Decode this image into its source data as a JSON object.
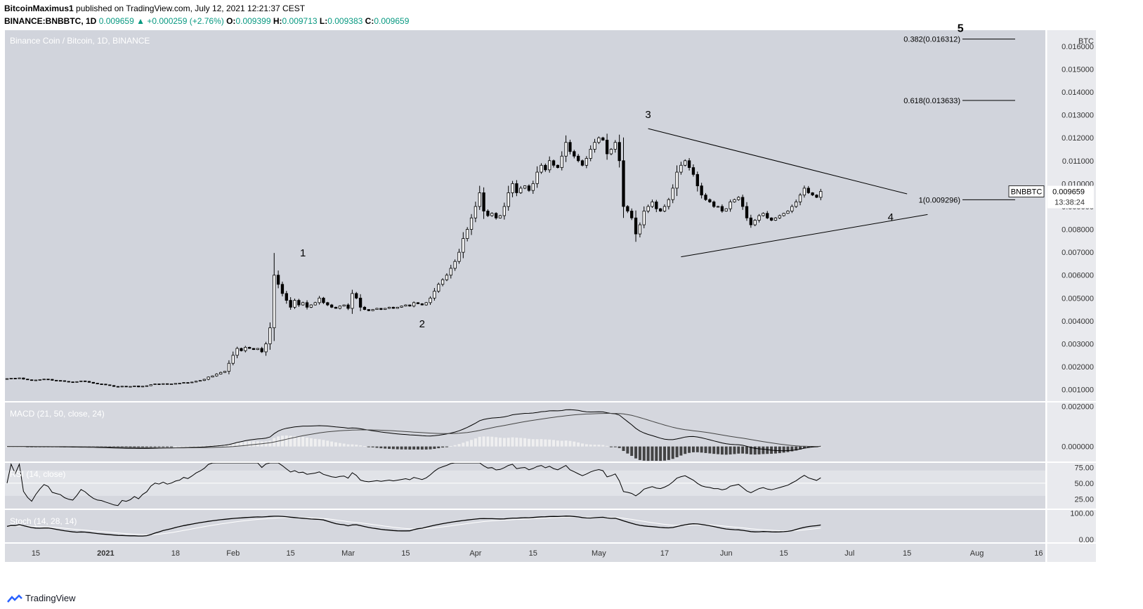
{
  "header": {
    "author": "BitcoinMaximus1",
    "published": "published on TradingView.com, July 12, 2021 12:21:37 CEST",
    "symbol": "BINANCE:BNBBTC, 1D",
    "last": "0.009659",
    "change": "+0.000259 (+2.76%)",
    "open_label": "O:",
    "open": "0.009399",
    "high_label": "H:",
    "high": "0.009713",
    "low_label": "L:",
    "low": "0.009383",
    "close_label": "C:",
    "close": "0.009659"
  },
  "brand": {
    "name": "TradingView"
  },
  "colors": {
    "pane_bg": "#d1d4dc",
    "indicator_bg": "#d5d7de",
    "band": "#e1e3e8",
    "candle_up": "#ffffff",
    "candle_down": "#000000",
    "line": "#000000"
  },
  "chart_data": {
    "type": "candlestick",
    "title": "Binance Coin / Bitcoin, 1D, BINANCE",
    "price_unit": "BTC",
    "ylim": [
      0.0005,
      0.0167
    ],
    "price_ticks": [
      "0.016000",
      "0.015000",
      "0.014000",
      "0.013000",
      "0.012000",
      "0.011000",
      "0.010000",
      "0.009000",
      "0.008000",
      "0.007000",
      "0.006000",
      "0.005000",
      "0.004000",
      "0.003000",
      "0.002000",
      "0.001000"
    ],
    "x_ticks": [
      {
        "date": "2020-12-15",
        "label": "15"
      },
      {
        "date": "2021-01-01",
        "label": "2021"
      },
      {
        "date": "2021-01-18",
        "label": "18"
      },
      {
        "date": "2021-02-01",
        "label": "Feb"
      },
      {
        "date": "2021-02-15",
        "label": "15"
      },
      {
        "date": "2021-03-01",
        "label": "Mar"
      },
      {
        "date": "2021-03-15",
        "label": "15"
      },
      {
        "date": "2021-04-01",
        "label": "Apr"
      },
      {
        "date": "2021-04-15",
        "label": "15"
      },
      {
        "date": "2021-05-01",
        "label": "May"
      },
      {
        "date": "2021-05-17",
        "label": "17"
      },
      {
        "date": "2021-06-01",
        "label": "Jun"
      },
      {
        "date": "2021-06-15",
        "label": "15"
      },
      {
        "date": "2021-07-01",
        "label": "Jul"
      },
      {
        "date": "2021-07-15",
        "label": "15"
      },
      {
        "date": "2021-08-01",
        "label": "Aug"
      },
      {
        "date": "2021-08-16",
        "label": "16"
      }
    ],
    "close_series": {
      "start_date": "2020-12-08",
      "values": [
        0.00148,
        0.0015,
        0.00149,
        0.00151,
        0.00146,
        0.00143,
        0.0014,
        0.00142,
        0.00144,
        0.00146,
        0.00145,
        0.00141,
        0.0014,
        0.00139,
        0.00136,
        0.00134,
        0.00133,
        0.00135,
        0.00138,
        0.00136,
        0.00132,
        0.00128,
        0.00125,
        0.00124,
        0.00121,
        0.00118,
        0.00114,
        0.00112,
        0.00115,
        0.00113,
        0.00114,
        0.00116,
        0.00112,
        0.00115,
        0.00117,
        0.00122,
        0.00125,
        0.00124,
        0.00126,
        0.00124,
        0.00125,
        0.00127,
        0.00128,
        0.00131,
        0.0013,
        0.00133,
        0.00137,
        0.0014,
        0.00145,
        0.00155,
        0.0016,
        0.00168,
        0.00175,
        0.0018,
        0.00215,
        0.0025,
        0.0028,
        0.0027,
        0.00285,
        0.0028,
        0.00275,
        0.0028,
        0.00265,
        0.003,
        0.0037,
        0.006,
        0.0056,
        0.0052,
        0.0049,
        0.0046,
        0.0049,
        0.0047,
        0.0048,
        0.0046,
        0.0047,
        0.0048,
        0.005,
        0.0048,
        0.0047,
        0.0046,
        0.00455,
        0.00465,
        0.0047,
        0.00455,
        0.0052,
        0.005,
        0.0046,
        0.0045,
        0.00445,
        0.0045,
        0.00455,
        0.0045,
        0.00455,
        0.0046,
        0.00455,
        0.0046,
        0.00465,
        0.0047,
        0.00465,
        0.0048,
        0.00475,
        0.0047,
        0.0048,
        0.005,
        0.0053,
        0.0056,
        0.0058,
        0.006,
        0.0063,
        0.0066,
        0.007,
        0.0076,
        0.008,
        0.0085,
        0.009,
        0.0096,
        0.0088,
        0.0086,
        0.0087,
        0.0085,
        0.0086,
        0.009,
        0.0096,
        0.01,
        0.0096,
        0.0098,
        0.0099,
        0.0097,
        0.01,
        0.0105,
        0.0108,
        0.0106,
        0.011,
        0.0108,
        0.0107,
        0.0112,
        0.0118,
        0.0114,
        0.0112,
        0.011,
        0.0108,
        0.0111,
        0.0115,
        0.0118,
        0.012,
        0.0119,
        0.0113,
        0.0115,
        0.0118,
        0.011,
        0.009,
        0.0088,
        0.0085,
        0.0078,
        0.0082,
        0.0088,
        0.009,
        0.0092,
        0.0089,
        0.0088,
        0.009,
        0.0093,
        0.0098,
        0.0105,
        0.0108,
        0.011,
        0.0107,
        0.0104,
        0.0099,
        0.0095,
        0.0093,
        0.0092,
        0.009,
        0.009,
        0.0088,
        0.0089,
        0.0092,
        0.0093,
        0.0094,
        0.009,
        0.0085,
        0.0082,
        0.0084,
        0.0086,
        0.0087,
        0.0085,
        0.0084,
        0.0085,
        0.0086,
        0.0087,
        0.0088,
        0.009,
        0.0092,
        0.0095,
        0.0098,
        0.0096,
        0.0095,
        0.0094,
        0.00966
      ]
    },
    "annotations": {
      "waves": [
        {
          "label": "1",
          "date": "2021-02-18",
          "price": 0.00682
        },
        {
          "label": "2",
          "date": "2021-03-19",
          "price": 0.00372
        },
        {
          "label": "3",
          "date": "2021-05-13",
          "price": 0.01287
        },
        {
          "label": "4",
          "date": "2021-07-11",
          "price": 0.00839
        },
        {
          "label": "5",
          "date": "2021-07-28",
          "price": 0.01662
        }
      ],
      "fib_levels": [
        {
          "label": "0.382(0.016312)",
          "price": 0.016312
        },
        {
          "label": "0.618(0.013633)",
          "price": 0.013633
        },
        {
          "label": "1(0.009296)",
          "price": 0.009296
        }
      ],
      "triangle": {
        "upper": [
          {
            "date": "2021-05-13",
            "price": 0.0124
          },
          {
            "date": "2021-07-15",
            "price": 0.00955
          }
        ],
        "lower": [
          {
            "date": "2021-05-21",
            "price": 0.0068
          },
          {
            "date": "2021-07-20",
            "price": 0.00865
          }
        ]
      },
      "price_label": {
        "symbol": "BNBBTC",
        "value": "0.009659",
        "countdown": "13:38:24"
      }
    },
    "indicators": {
      "macd": {
        "title": "MACD (21, 50, close, 24)",
        "ylim": [
          -0.00075,
          0.0022
        ],
        "ticks": [
          "0.002000",
          "0.000000"
        ],
        "zero": "0.000000"
      },
      "rsi": {
        "title": "RSI (14, close)",
        "ylim": [
          10,
          82
        ],
        "ticks": [
          "75.00",
          "50.00",
          "25.00"
        ],
        "band": [
          30,
          70
        ]
      },
      "stoch": {
        "title": "Stoch (14, 28, 14)",
        "ylim": [
          -10,
          112
        ],
        "ticks": [
          "100.00",
          "0.00"
        ]
      }
    }
  }
}
